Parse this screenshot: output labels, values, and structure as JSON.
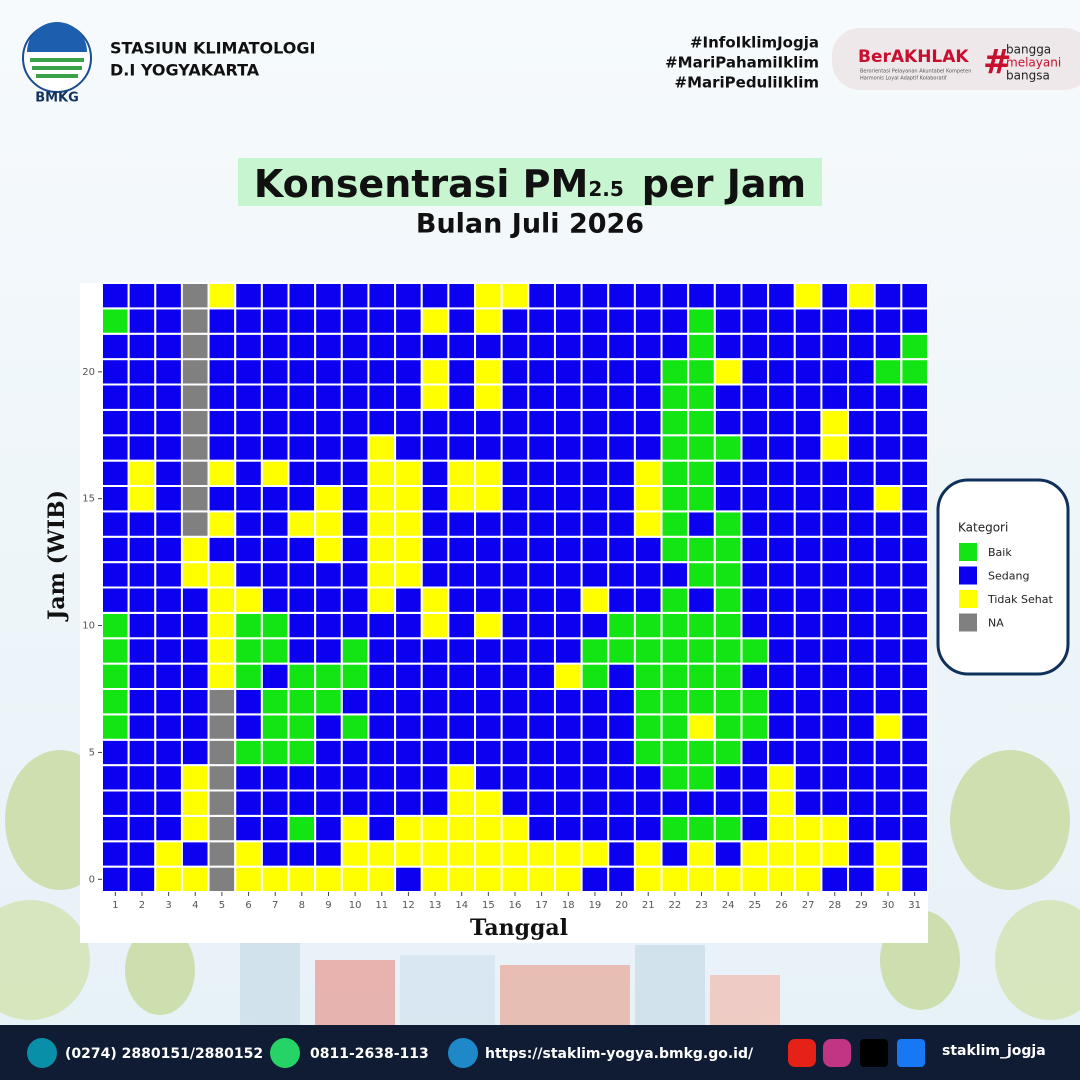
{
  "header": {
    "org_line1": "STASIUN KLIMATOLOGI",
    "org_line2": "D.I YOGYAKARTA",
    "logo_text": "BMKG",
    "hashtags": [
      "#InfoIklimJogja",
      "#MariPahamiIklim",
      "#MariPeduliIklim"
    ],
    "badge": {
      "name": "BerAKHLAK",
      "tagline": "Berorientasi Pelayanan Akuntabel Kompeten",
      "tagline2": "Harmonis Loyal Adaptif Kolaboratif",
      "hash": "#",
      "motto": [
        "bangga",
        "melayani",
        "bangsa"
      ]
    }
  },
  "chart_data": {
    "type": "heatmap",
    "title": "Konsentrasi PM",
    "title_subscript": "2.5",
    "title_end": "per Jam",
    "subtitle": "Bulan Juli 2026",
    "x_label": "Tanggal",
    "y_label": "Jam (WIB)",
    "x": [
      1,
      2,
      3,
      4,
      5,
      6,
      7,
      8,
      9,
      10,
      11,
      12,
      13,
      14,
      15,
      16,
      17,
      18,
      19,
      20,
      21,
      22,
      23,
      24,
      25,
      26,
      27,
      28,
      29,
      30,
      31
    ],
    "y": [
      0,
      1,
      2,
      3,
      4,
      5,
      6,
      7,
      8,
      9,
      10,
      11,
      12,
      13,
      14,
      15,
      16,
      17,
      18,
      19,
      20,
      21,
      22,
      23
    ],
    "xlim": [
      0.5,
      31.5
    ],
    "ylim": [
      -0.5,
      23.5
    ],
    "yticks": [
      0,
      5,
      10,
      15,
      20
    ],
    "legend_title": "Kategori",
    "legend": [
      {
        "name": "Baik",
        "color": "#13e413"
      },
      {
        "name": "Sedang",
        "color": "#0c00f0"
      },
      {
        "name": "Tidak Sehat",
        "color": "#ffff00"
      },
      {
        "name": "NA",
        "color": "#808080"
      }
    ],
    "z": [
      [
        1,
        1,
        2,
        2,
        3,
        2,
        2,
        2,
        2,
        2,
        2,
        1,
        2,
        2,
        2,
        2,
        2,
        2,
        1,
        1,
        2,
        2,
        2,
        2,
        2,
        2,
        2,
        1,
        1,
        2,
        1
      ],
      [
        1,
        1,
        2,
        1,
        3,
        2,
        1,
        1,
        1,
        2,
        2,
        2,
        2,
        2,
        2,
        2,
        2,
        2,
        2,
        1,
        2,
        1,
        2,
        1,
        2,
        2,
        2,
        2,
        1,
        2,
        1
      ],
      [
        1,
        1,
        1,
        2,
        3,
        1,
        1,
        0,
        1,
        2,
        1,
        2,
        2,
        2,
        2,
        2,
        1,
        1,
        1,
        1,
        1,
        0,
        0,
        0,
        1,
        2,
        2,
        2,
        1,
        1,
        1
      ],
      [
        1,
        1,
        1,
        2,
        3,
        1,
        1,
        1,
        1,
        1,
        1,
        1,
        1,
        2,
        2,
        1,
        1,
        1,
        1,
        1,
        1,
        1,
        1,
        1,
        1,
        2,
        1,
        1,
        1,
        1,
        1
      ],
      [
        1,
        1,
        1,
        2,
        3,
        1,
        1,
        1,
        1,
        1,
        1,
        1,
        1,
        2,
        1,
        1,
        1,
        1,
        1,
        1,
        1,
        0,
        0,
        1,
        1,
        2,
        1,
        1,
        1,
        1,
        1
      ],
      [
        1,
        1,
        1,
        1,
        3,
        0,
        0,
        0,
        1,
        1,
        1,
        1,
        1,
        1,
        1,
        1,
        1,
        1,
        1,
        1,
        0,
        0,
        0,
        0,
        1,
        1,
        1,
        1,
        1,
        1,
        1
      ],
      [
        0,
        1,
        1,
        1,
        3,
        1,
        0,
        0,
        1,
        0,
        1,
        1,
        1,
        1,
        1,
        1,
        1,
        1,
        1,
        1,
        0,
        0,
        2,
        0,
        0,
        1,
        1,
        1,
        1,
        2,
        1
      ],
      [
        0,
        1,
        1,
        1,
        3,
        1,
        0,
        0,
        0,
        1,
        1,
        1,
        1,
        1,
        1,
        1,
        1,
        1,
        1,
        1,
        0,
        0,
        0,
        0,
        0,
        1,
        1,
        1,
        1,
        1,
        1
      ],
      [
        0,
        1,
        1,
        1,
        2,
        0,
        1,
        0,
        0,
        0,
        1,
        1,
        1,
        1,
        1,
        1,
        1,
        2,
        0,
        1,
        0,
        0,
        0,
        0,
        1,
        1,
        1,
        1,
        1,
        1,
        1
      ],
      [
        0,
        1,
        1,
        1,
        2,
        0,
        0,
        1,
        1,
        0,
        1,
        1,
        1,
        1,
        1,
        1,
        1,
        1,
        0,
        0,
        0,
        0,
        0,
        0,
        0,
        1,
        1,
        1,
        1,
        1,
        1
      ],
      [
        0,
        1,
        1,
        1,
        2,
        0,
        0,
        1,
        1,
        1,
        1,
        1,
        2,
        1,
        2,
        1,
        1,
        1,
        1,
        0,
        0,
        0,
        0,
        0,
        1,
        1,
        1,
        1,
        1,
        1,
        1
      ],
      [
        1,
        1,
        1,
        1,
        2,
        2,
        1,
        1,
        1,
        1,
        2,
        1,
        2,
        1,
        1,
        1,
        1,
        1,
        2,
        1,
        1,
        0,
        1,
        0,
        1,
        1,
        1,
        1,
        1,
        1,
        1
      ],
      [
        1,
        1,
        1,
        2,
        2,
        1,
        1,
        1,
        1,
        1,
        2,
        2,
        1,
        1,
        1,
        1,
        1,
        1,
        1,
        1,
        1,
        1,
        0,
        0,
        1,
        1,
        1,
        1,
        1,
        1,
        1
      ],
      [
        1,
        1,
        1,
        2,
        1,
        1,
        1,
        1,
        2,
        1,
        2,
        2,
        1,
        1,
        1,
        1,
        1,
        1,
        1,
        1,
        1,
        0,
        0,
        0,
        1,
        1,
        1,
        1,
        1,
        1,
        1
      ],
      [
        1,
        1,
        1,
        3,
        2,
        1,
        1,
        2,
        2,
        1,
        2,
        2,
        1,
        1,
        1,
        1,
        1,
        1,
        1,
        1,
        2,
        0,
        1,
        0,
        1,
        1,
        1,
        1,
        1,
        1,
        1
      ],
      [
        1,
        2,
        1,
        3,
        1,
        1,
        1,
        1,
        2,
        1,
        2,
        2,
        1,
        2,
        2,
        1,
        1,
        1,
        1,
        1,
        2,
        0,
        0,
        1,
        1,
        1,
        1,
        1,
        1,
        2,
        1
      ],
      [
        1,
        2,
        1,
        3,
        2,
        1,
        2,
        1,
        1,
        1,
        2,
        2,
        1,
        2,
        2,
        1,
        1,
        1,
        1,
        1,
        2,
        0,
        0,
        1,
        1,
        1,
        1,
        1,
        1,
        1,
        1
      ],
      [
        1,
        1,
        1,
        3,
        1,
        1,
        1,
        1,
        1,
        1,
        2,
        1,
        1,
        1,
        1,
        1,
        1,
        1,
        1,
        1,
        1,
        0,
        0,
        0,
        1,
        1,
        1,
        2,
        1,
        1,
        1
      ],
      [
        1,
        1,
        1,
        3,
        1,
        1,
        1,
        1,
        1,
        1,
        1,
        1,
        1,
        1,
        1,
        1,
        1,
        1,
        1,
        1,
        1,
        0,
        0,
        1,
        1,
        1,
        1,
        2,
        1,
        1,
        1
      ],
      [
        1,
        1,
        1,
        3,
        1,
        1,
        1,
        1,
        1,
        1,
        1,
        1,
        2,
        1,
        2,
        1,
        1,
        1,
        1,
        1,
        1,
        0,
        0,
        1,
        1,
        1,
        1,
        1,
        1,
        1,
        1
      ],
      [
        1,
        1,
        1,
        3,
        1,
        1,
        1,
        1,
        1,
        1,
        1,
        1,
        2,
        1,
        2,
        1,
        1,
        1,
        1,
        1,
        1,
        0,
        0,
        2,
        1,
        1,
        1,
        1,
        1,
        0,
        0
      ],
      [
        1,
        1,
        1,
        3,
        1,
        1,
        1,
        1,
        1,
        1,
        1,
        1,
        1,
        1,
        1,
        1,
        1,
        1,
        1,
        1,
        1,
        1,
        0,
        1,
        1,
        1,
        1,
        1,
        1,
        1,
        0
      ],
      [
        0,
        1,
        1,
        3,
        1,
        1,
        1,
        1,
        1,
        1,
        1,
        1,
        2,
        1,
        2,
        1,
        1,
        1,
        1,
        1,
        1,
        1,
        0,
        1,
        1,
        1,
        1,
        1,
        1,
        1,
        1
      ],
      [
        1,
        1,
        1,
        3,
        2,
        1,
        1,
        1,
        1,
        1,
        1,
        1,
        1,
        1,
        2,
        2,
        1,
        1,
        1,
        1,
        1,
        1,
        1,
        1,
        1,
        1,
        2,
        1,
        2,
        1,
        1
      ]
    ]
  },
  "footer": {
    "phone": "(0274) 2880151/2880152",
    "whatsapp": "0811-2638-113",
    "website": "https://staklim-yogya.bmkg.go.id/",
    "social": "staklim_jogja"
  }
}
